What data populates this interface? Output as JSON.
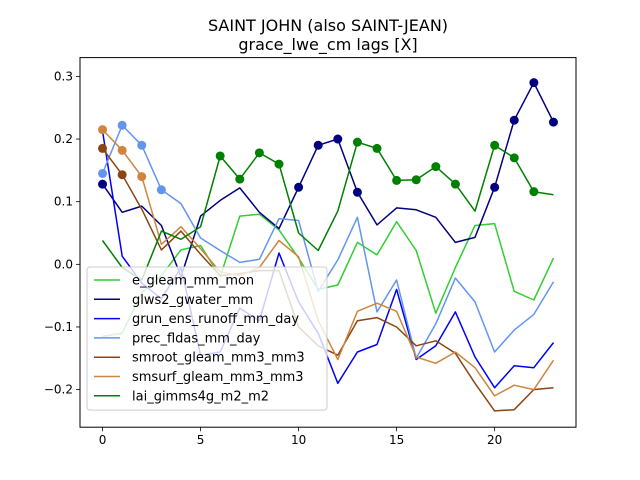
{
  "chart_data": {
    "type": "line",
    "title": "SAINT JOHN (also SAINT-JEAN)",
    "subtitle": "grace_lwe_cm lags [X]",
    "xlabel": "",
    "ylabel": "",
    "xlim": [
      -1.15,
      24.15
    ],
    "ylim": [
      -0.26,
      0.33
    ],
    "xticks": [
      0,
      5,
      10,
      15,
      20
    ],
    "yticks": [
      -0.2,
      -0.1,
      0.0,
      0.1,
      0.2,
      0.3
    ],
    "ytick_labels": [
      "−0.2",
      "−0.1",
      "0.0",
      "0.1",
      "0.2",
      "0.3"
    ],
    "grid": false,
    "legend_position": "lower-left",
    "x": [
      0,
      1,
      2,
      3,
      4,
      5,
      6,
      7,
      8,
      9,
      10,
      11,
      12,
      13,
      14,
      15,
      16,
      17,
      18,
      19,
      20,
      21,
      22,
      23
    ],
    "series": [
      {
        "name": "e_gleam_mm_mon",
        "color": "#32cd32",
        "values": [
          -0.115,
          -0.11,
          -0.045,
          -0.018,
          0.023,
          0.03,
          -0.02,
          0.077,
          0.08,
          0.055,
          0.01,
          -0.04,
          -0.033,
          0.035,
          0.015,
          0.068,
          0.022,
          -0.078,
          -0.005,
          0.062,
          0.065,
          -0.043,
          -0.057,
          0.01
        ],
        "markers": []
      },
      {
        "name": "glws2_gwater_mm",
        "color": "#000080",
        "values": [
          0.128,
          0.083,
          0.093,
          0.062,
          -0.02,
          0.077,
          0.102,
          0.122,
          0.083,
          0.057,
          0.123,
          0.19,
          0.2,
          0.115,
          0.063,
          0.09,
          0.087,
          0.075,
          0.035,
          0.043,
          0.123,
          0.23,
          0.29,
          0.227
        ],
        "markers": [
          0,
          10,
          11,
          12,
          13,
          20,
          21,
          22,
          23
        ]
      },
      {
        "name": "grun_ens_runoff_mm_day",
        "color": "#0000ff",
        "values": [
          0.213,
          0.013,
          -0.03,
          -0.055,
          -0.005,
          -0.145,
          -0.14,
          -0.07,
          -0.09,
          0.018,
          -0.06,
          -0.11,
          -0.19,
          -0.14,
          -0.128,
          -0.04,
          -0.152,
          -0.13,
          -0.076,
          -0.148,
          -0.197,
          -0.162,
          -0.165,
          -0.125
        ],
        "markers": []
      },
      {
        "name": "prec_fldas_mm_day",
        "color": "#6495ed",
        "values": [
          0.145,
          0.222,
          0.19,
          0.119,
          0.097,
          0.042,
          0.022,
          0.003,
          0.008,
          0.073,
          0.07,
          -0.043,
          0.007,
          0.075,
          -0.076,
          -0.025,
          -0.15,
          -0.095,
          -0.022,
          -0.06,
          -0.14,
          -0.105,
          -0.08,
          -0.028
        ],
        "markers": [
          0,
          1,
          2,
          3
        ]
      },
      {
        "name": "smroot_gleam_mm3_mm3",
        "color": "#8b4513",
        "values": [
          0.185,
          0.143,
          0.088,
          0.023,
          0.053,
          0.016,
          -0.018,
          -0.015,
          -0.01,
          -0.01,
          -0.1,
          -0.13,
          -0.145,
          -0.09,
          -0.085,
          -0.1,
          -0.13,
          -0.122,
          -0.142,
          -0.19,
          -0.234,
          -0.232,
          -0.2,
          -0.197
        ],
        "markers": [
          0,
          1
        ]
      },
      {
        "name": "smsurf_gleam_mm3_mm3",
        "color": "#cd853f",
        "values": [
          0.215,
          0.182,
          0.14,
          0.032,
          0.06,
          0.025,
          -0.012,
          -0.018,
          -0.005,
          0.038,
          0.012,
          -0.09,
          -0.152,
          -0.075,
          -0.062,
          -0.075,
          -0.148,
          -0.158,
          -0.14,
          -0.165,
          -0.21,
          -0.193,
          -0.2,
          -0.153
        ],
        "markers": [
          0,
          1,
          2
        ]
      },
      {
        "name": "lai_gimms4g_m2_m2",
        "color": "#008000",
        "values": [
          0.038,
          -0.005,
          -0.025,
          0.053,
          0.04,
          0.06,
          0.173,
          0.136,
          0.178,
          0.16,
          0.05,
          0.022,
          0.085,
          0.195,
          0.185,
          0.134,
          0.135,
          0.156,
          0.128,
          0.085,
          0.19,
          0.17,
          0.116,
          0.111
        ],
        "markers": [
          6,
          7,
          8,
          9,
          13,
          14,
          15,
          16,
          17,
          18,
          20,
          21,
          22
        ]
      }
    ]
  }
}
